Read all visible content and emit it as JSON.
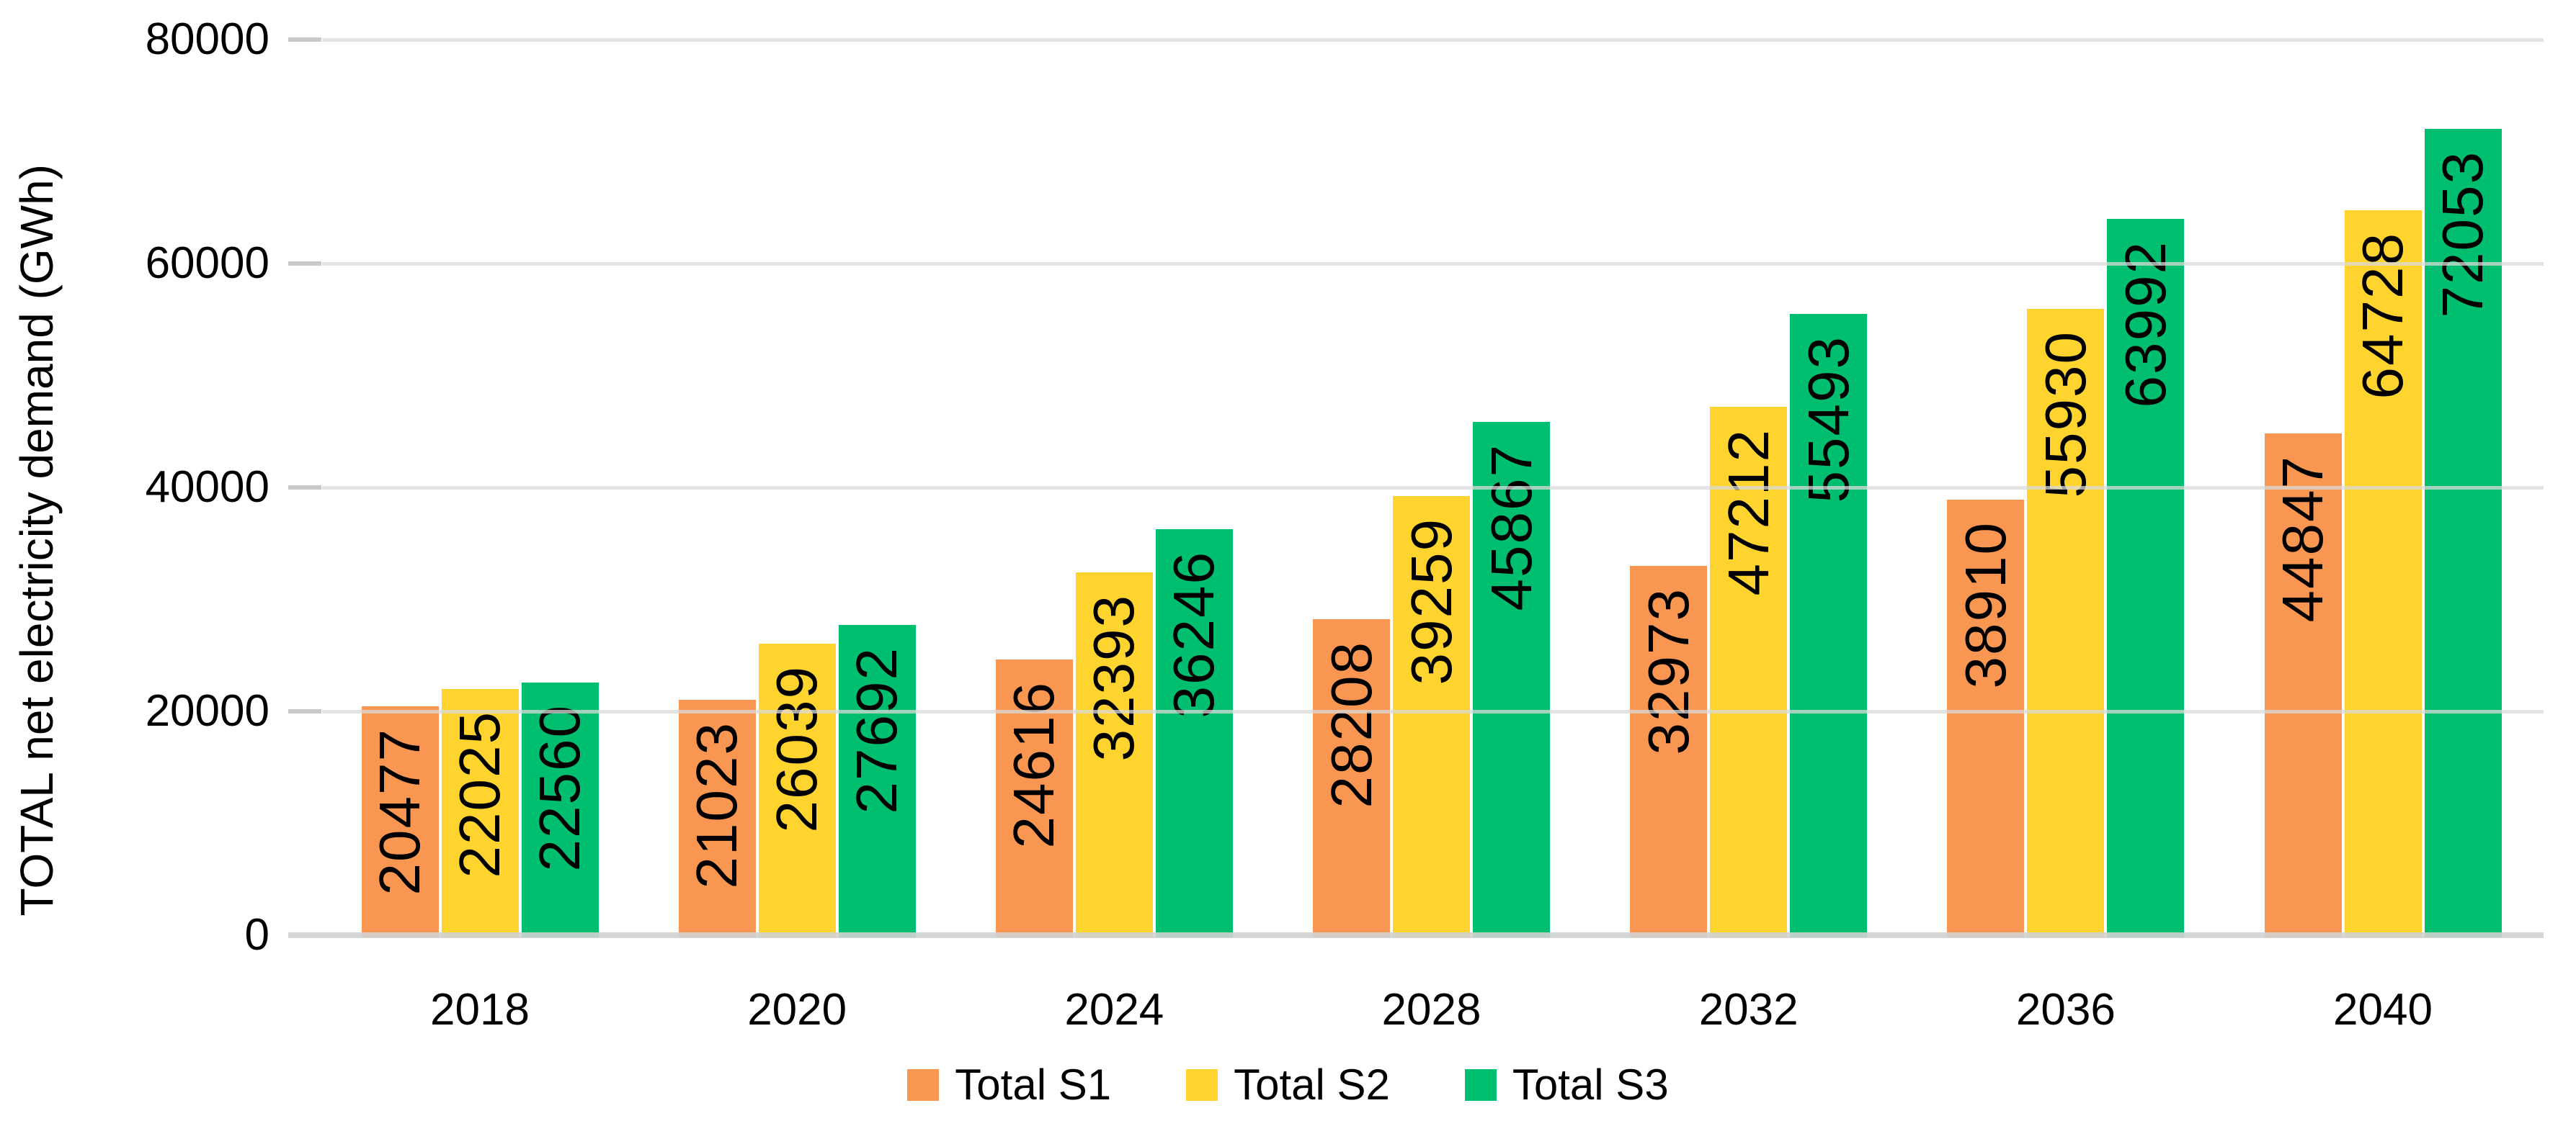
{
  "chart_data": {
    "type": "bar",
    "title": "",
    "ylabel": "TOTAL net electricity demand (GWh)",
    "xlabel": "",
    "categories": [
      "2018",
      "2020",
      "2024",
      "2028",
      "2032",
      "2036",
      "2040"
    ],
    "series": [
      {
        "name": "Total S1",
        "color": "#F89652",
        "values": [
          20477,
          21023,
          24616,
          28208,
          32973,
          38910,
          44847
        ]
      },
      {
        "name": "Total S2",
        "color": "#FFD42E",
        "values": [
          22025,
          26039,
          32393,
          39259,
          47212,
          55930,
          64728
        ]
      },
      {
        "name": "Total S3",
        "color": "#00BE6F",
        "values": [
          22560,
          27692,
          36246,
          45867,
          55493,
          63992,
          72053
        ]
      }
    ],
    "y_ticks": [
      0,
      20000,
      40000,
      60000,
      80000
    ],
    "y_tick_labels": [
      "0",
      "20000",
      "40000",
      "60000",
      "80000"
    ],
    "ylim": [
      0,
      80000
    ],
    "grid": true,
    "gridline_color": "#D9D9D9",
    "axis_line_color": "#D2D2D2",
    "data_labels": "rotated vertical, inside end, black",
    "legend_position": "bottom"
  }
}
